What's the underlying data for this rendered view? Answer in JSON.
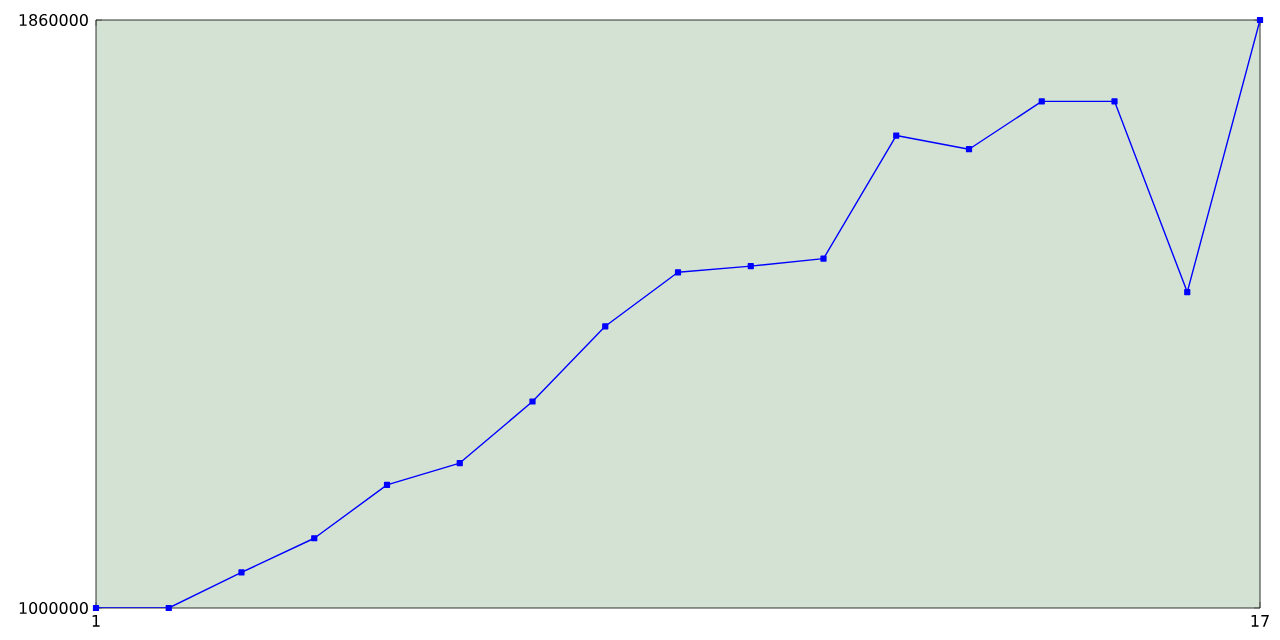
{
  "chart_data": {
    "type": "line",
    "x": [
      1,
      2,
      3,
      4,
      5,
      6,
      7,
      8,
      9,
      10,
      11,
      12,
      13,
      14,
      15,
      16,
      17
    ],
    "series": [
      {
        "color": "#0000ff",
        "values": [
          1000000,
          1000000,
          1052000,
          1102000,
          1180000,
          1212000,
          1302000,
          1412000,
          1491000,
          1500000,
          1511000,
          1691000,
          1671000,
          1741000,
          1741000,
          1462000,
          1860000
        ]
      }
    ],
    "xlim": [
      1,
      17
    ],
    "xticks": [
      1,
      17
    ],
    "ylim": [
      1000000,
      1860000
    ],
    "yticks": [
      1000000,
      1860000
    ],
    "marker": "square",
    "line_style": "solid",
    "grid": false
  }
}
